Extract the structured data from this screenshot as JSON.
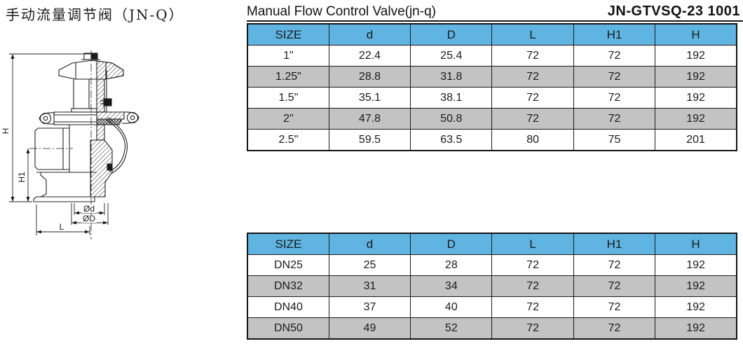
{
  "page": {
    "title_cn": "手动流量调节阀（JN-Q）",
    "title_en": "Manual Flow Control Valve(jn-q)",
    "part_number": "JN-GTVSQ-23 1001"
  },
  "colors": {
    "header_bg": "#5fb4e1",
    "row_alt_bg": "#c3c3c3",
    "border": "#1a1a1a",
    "text": "#1a1a1a"
  },
  "drawing": {
    "description": "manual flow control valve cross-section drawing",
    "labels": {
      "h": "H",
      "h1": "H1",
      "l": "L",
      "d_inner": "Ød",
      "d_outer": "ØD"
    }
  },
  "table_inch": {
    "headers": [
      "SIZE",
      "d",
      "D",
      "L",
      "H1",
      "H"
    ],
    "rows": [
      [
        "1\"",
        "22.4",
        "25.4",
        "72",
        "72",
        "192"
      ],
      [
        "1.25\"",
        "28.8",
        "31.8",
        "72",
        "72",
        "192"
      ],
      [
        "1.5\"",
        "35.1",
        "38.1",
        "72",
        "72",
        "192"
      ],
      [
        "2\"",
        "47.8",
        "50.8",
        "72",
        "72",
        "192"
      ],
      [
        "2.5\"",
        "59.5",
        "63.5",
        "80",
        "75",
        "201"
      ]
    ]
  },
  "table_dn": {
    "headers": [
      "SIZE",
      "d",
      "D",
      "L",
      "H1",
      "H"
    ],
    "rows": [
      [
        "DN25",
        "25",
        "28",
        "72",
        "72",
        "192"
      ],
      [
        "DN32",
        "31",
        "34",
        "72",
        "72",
        "192"
      ],
      [
        "DN40",
        "37",
        "40",
        "72",
        "72",
        "192"
      ],
      [
        "DN50",
        "49",
        "52",
        "72",
        "72",
        "192"
      ]
    ]
  }
}
